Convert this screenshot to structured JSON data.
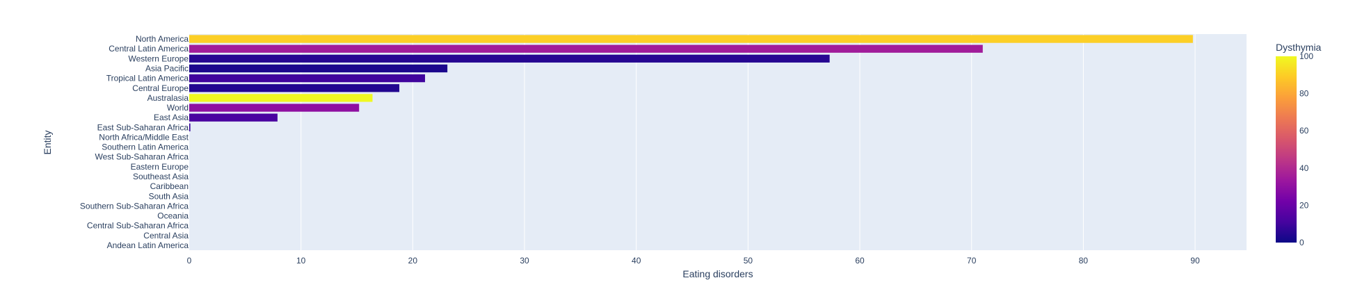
{
  "chart_data": {
    "type": "bar",
    "orientation": "horizontal",
    "xlabel": "Eating disorders",
    "ylabel": "Entity",
    "xlim": [
      0,
      94.6
    ],
    "xticks": [
      0,
      10,
      20,
      30,
      40,
      50,
      60,
      70,
      80,
      90
    ],
    "grid": true,
    "categories": [
      "North America",
      "Central Latin America",
      "Western Europe",
      "Asia Pacific",
      "Tropical Latin America",
      "Central Europe",
      "Australasia",
      "World",
      "East Asia",
      "East Sub-Saharan Africa",
      "North Africa/Middle East",
      "Southern Latin America",
      "West Sub-Saharan Africa",
      "Eastern Europe",
      "Southeast Asia",
      "Caribbean",
      "South Asia",
      "Southern Sub-Saharan Africa",
      "Oceania",
      "Central Sub-Saharan Africa",
      "Central Asia",
      "Andean Latin America"
    ],
    "values": [
      89.8,
      71.0,
      57.3,
      23.1,
      21.1,
      18.8,
      16.4,
      15.2,
      7.9,
      0.1,
      0,
      0,
      0,
      0,
      0,
      0,
      0,
      0,
      0,
      0,
      0,
      0
    ],
    "color_values": [
      90,
      35,
      5,
      3,
      10,
      4,
      100,
      30,
      12,
      8,
      0,
      0,
      0,
      0,
      0,
      0,
      0,
      0,
      0,
      0,
      0,
      0
    ],
    "colorbar": {
      "title": "Dysthymia",
      "range": [
        0,
        100
      ],
      "ticks": [
        0,
        20,
        40,
        60,
        80,
        100
      ],
      "colorscale": [
        "#0d0887",
        "#46039f",
        "#7201a8",
        "#9c179e",
        "#bd3786",
        "#d8576b",
        "#ed7953",
        "#fb9f3a",
        "#fdca26",
        "#f0f921"
      ]
    },
    "colors": {
      "plot_background": "#e5ecf6",
      "grid": "#ffffff",
      "text": "#2a3f5f"
    }
  }
}
